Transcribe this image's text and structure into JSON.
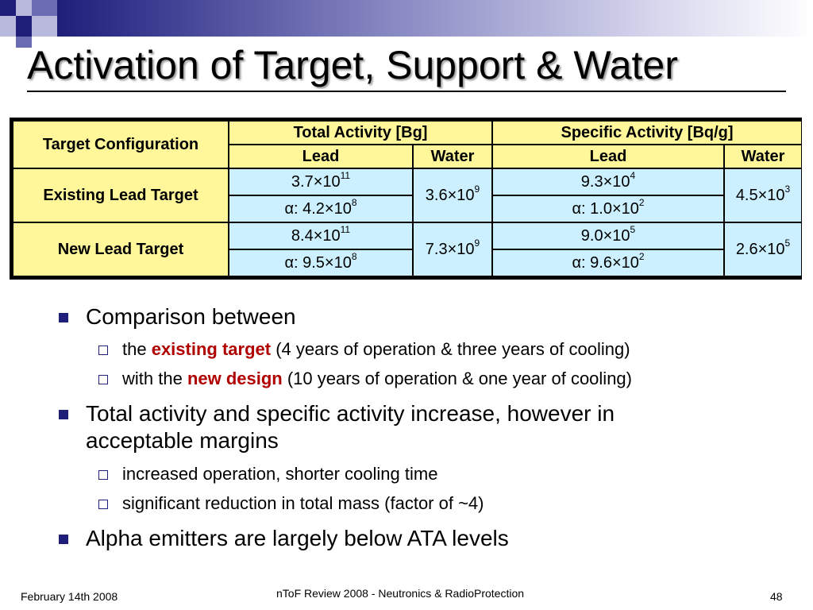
{
  "slide": {
    "title": "Activation of Target, Support & Water",
    "table": {
      "col_config": "Target Configuration",
      "col_total": "Total Activity [Bg]",
      "col_specific": "Specific Activity [Bq/g]",
      "sub_lead_1": "Lead",
      "sub_water_1": "Water",
      "sub_lead_2": "Lead",
      "sub_water_2": "Water",
      "rows": [
        {
          "label": "Existing Lead Target",
          "total_lead_base": "3.7×10",
          "total_lead_exp": "11",
          "total_lead_alpha_base": "α: 4.2×10",
          "total_lead_alpha_exp": "8",
          "total_water_base": "3.6×10",
          "total_water_exp": "9",
          "spec_lead_base": "9.3×10",
          "spec_lead_exp": "4",
          "spec_lead_alpha_base": "α: 1.0×10",
          "spec_lead_alpha_exp": "2",
          "spec_water_base": "4.5×10",
          "spec_water_exp": "3"
        },
        {
          "label": "New Lead Target",
          "total_lead_base": "8.4×10",
          "total_lead_exp": "11",
          "total_lead_alpha_base": "α: 9.5×10",
          "total_lead_alpha_exp": "8",
          "total_water_base": "7.3×10",
          "total_water_exp": "9",
          "spec_lead_base": "9.0×10",
          "spec_lead_exp": "5",
          "spec_lead_alpha_base": "α: 9.6×10",
          "spec_lead_alpha_exp": "2",
          "spec_water_base": "2.6×10",
          "spec_water_exp": "5"
        }
      ]
    },
    "bullets": {
      "b1": "Comparison between",
      "b1_s1_pre": "the ",
      "b1_s1_hl": "existing target",
      "b1_s1_post": " (4 years of operation & three years of cooling)",
      "b1_s2_pre": "with the ",
      "b1_s2_hl": "new design",
      "b1_s2_post": " (10 years of operation & one year of cooling)",
      "b2_line1": "Total activity and specific activity increase, however in",
      "b2_line2": "acceptable margins",
      "b2_s1": "increased operation, shorter cooling time",
      "b2_s2": "significant reduction in total mass (factor of ~4)",
      "b3": "Alpha emitters are largely below ATA levels"
    },
    "footer": {
      "date": "February 14th 2008",
      "center": "nToF Review 2008 -  Neutronics & RadioProtection",
      "page": "48"
    },
    "colors": {
      "header_fill": "#fff79a",
      "body_fill": "#ccf0ff",
      "accent": "#1f1f7a",
      "highlight": "#b00000"
    }
  }
}
